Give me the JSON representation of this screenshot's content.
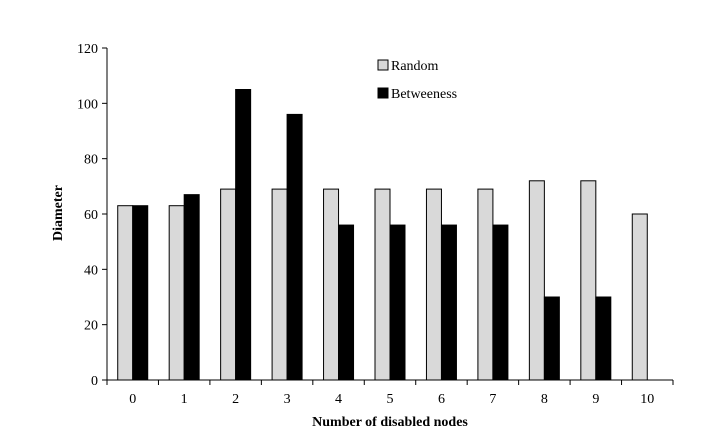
{
  "chart_data": {
    "type": "bar",
    "title": "",
    "xlabel": "Number of disabled nodes",
    "ylabel": "Diameter",
    "categories": [
      "0",
      "1",
      "2",
      "3",
      "4",
      "5",
      "6",
      "7",
      "8",
      "9",
      "10"
    ],
    "series": [
      {
        "name": "Random",
        "color": "#d9d9d9",
        "values": [
          63,
          63,
          69,
          69,
          69,
          69,
          69,
          69,
          72,
          72,
          60
        ]
      },
      {
        "name": "Betweeness",
        "color": "#000000",
        "values": [
          63,
          67,
          105,
          96,
          56,
          56,
          56,
          56,
          30,
          30,
          null
        ]
      }
    ],
    "ylim": [
      0,
      120
    ],
    "yticks": [
      0,
      20,
      40,
      60,
      80,
      100,
      120
    ],
    "grid": false,
    "legend_position": "top-center"
  }
}
